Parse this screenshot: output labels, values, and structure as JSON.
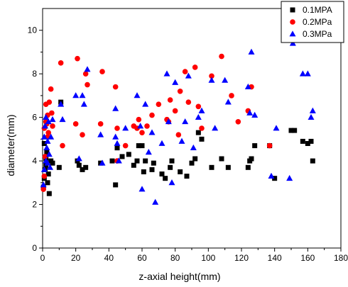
{
  "chart_data": {
    "type": "scatter",
    "title": "",
    "xlabel": "z-axial height(mm)",
    "ylabel": "diameter(mm)",
    "xlim": [
      0,
      180
    ],
    "ylim": [
      0,
      11
    ],
    "xticks": [
      0,
      20,
      40,
      60,
      80,
      100,
      120,
      140,
      160,
      180
    ],
    "yticks": [
      0,
      2,
      4,
      6,
      8,
      10
    ],
    "grid": false,
    "legend_position": "top-right",
    "series": [
      {
        "name": "0.1MPA",
        "marker": "square",
        "color": "#000000",
        "points": [
          [
            0.5,
            2.8
          ],
          [
            1,
            3.2
          ],
          [
            1.5,
            3.6
          ],
          [
            2,
            4.1
          ],
          [
            2.5,
            4.4
          ],
          [
            3,
            3.0
          ],
          [
            4,
            2.5
          ],
          [
            1,
            4.8
          ],
          [
            2,
            3.8
          ],
          [
            3.5,
            3.4
          ],
          [
            5,
            4.0
          ],
          [
            6,
            3.9
          ],
          [
            10,
            3.7
          ],
          [
            11,
            6.7
          ],
          [
            21,
            4.0
          ],
          [
            22,
            3.8
          ],
          [
            24,
            3.6
          ],
          [
            26,
            3.7
          ],
          [
            35,
            3.9
          ],
          [
            42,
            4.0
          ],
          [
            44,
            2.9
          ],
          [
            45,
            4.6
          ],
          [
            48,
            4.2
          ],
          [
            52,
            4.3
          ],
          [
            55,
            3.8
          ],
          [
            57,
            4.0
          ],
          [
            58,
            4.7
          ],
          [
            60,
            4.7
          ],
          [
            61,
            3.5
          ],
          [
            62,
            4.0
          ],
          [
            66,
            3.6
          ],
          [
            67,
            3.9
          ],
          [
            72,
            3.4
          ],
          [
            74,
            3.2
          ],
          [
            77,
            3.7
          ],
          [
            78,
            4.0
          ],
          [
            83,
            3.5
          ],
          [
            87,
            3.3
          ],
          [
            90,
            3.9
          ],
          [
            92,
            4.1
          ],
          [
            94,
            5.3
          ],
          [
            96,
            5.0
          ],
          [
            102,
            3.7
          ],
          [
            108,
            4.1
          ],
          [
            112,
            3.7
          ],
          [
            124,
            3.7
          ],
          [
            125,
            4.0
          ],
          [
            126,
            4.1
          ],
          [
            128,
            4.7
          ],
          [
            137,
            4.7
          ],
          [
            140,
            3.2
          ],
          [
            150,
            5.4
          ],
          [
            152,
            5.4
          ],
          [
            157,
            4.9
          ],
          [
            160,
            4.8
          ],
          [
            162,
            4.9
          ],
          [
            163,
            4.0
          ]
        ]
      },
      {
        "name": "0.2MPa",
        "marker": "circle",
        "color": "#ff0000",
        "points": [
          [
            0.5,
            2.7
          ],
          [
            1,
            3.3
          ],
          [
            1.5,
            4.2
          ],
          [
            2,
            6.6
          ],
          [
            2.5,
            5.7
          ],
          [
            3,
            5.1
          ],
          [
            3.5,
            5.3
          ],
          [
            4,
            6.7
          ],
          [
            5,
            7.3
          ],
          [
            5.5,
            6.2
          ],
          [
            6,
            5.6
          ],
          [
            1,
            5.5
          ],
          [
            2,
            5.8
          ],
          [
            3,
            6.1
          ],
          [
            11,
            8.5
          ],
          [
            12,
            4.7
          ],
          [
            20,
            5.7
          ],
          [
            21,
            8.7
          ],
          [
            24,
            5.2
          ],
          [
            26,
            8.0
          ],
          [
            27,
            7.5
          ],
          [
            35,
            5.7
          ],
          [
            36,
            8.1
          ],
          [
            44,
            7.4
          ],
          [
            45,
            5.5
          ],
          [
            45,
            4.0
          ],
          [
            50,
            4.7
          ],
          [
            55,
            5.6
          ],
          [
            57,
            5.5
          ],
          [
            58,
            5.9
          ],
          [
            60,
            5.3
          ],
          [
            63,
            5.6
          ],
          [
            66,
            6.1
          ],
          [
            70,
            6.6
          ],
          [
            75,
            5.9
          ],
          [
            76,
            5.8
          ],
          [
            77,
            6.8
          ],
          [
            80,
            6.3
          ],
          [
            82,
            5.2
          ],
          [
            83,
            7.2
          ],
          [
            86,
            8.1
          ],
          [
            88,
            6.7
          ],
          [
            92,
            8.3
          ],
          [
            94,
            6.5
          ],
          [
            96,
            5.5
          ],
          [
            102,
            7.9
          ],
          [
            108,
            8.8
          ],
          [
            114,
            7.0
          ],
          [
            118,
            5.8
          ],
          [
            124,
            6.3
          ],
          [
            126,
            7.4
          ],
          [
            137,
            4.7
          ]
        ]
      },
      {
        "name": "0.3MPa",
        "marker": "triangle",
        "color": "#0000ff",
        "points": [
          [
            0.5,
            2.9
          ],
          [
            1,
            5.1
          ],
          [
            1.5,
            5.6
          ],
          [
            2,
            6.0
          ],
          [
            2.5,
            4.6
          ],
          [
            3,
            4.9
          ],
          [
            3.5,
            5.8
          ],
          [
            4,
            4.3
          ],
          [
            5,
            5.1
          ],
          [
            6,
            5.9
          ],
          [
            1,
            3.6
          ],
          [
            2,
            4.0
          ],
          [
            3,
            3.9
          ],
          [
            4.5,
            3.7
          ],
          [
            11,
            6.6
          ],
          [
            12,
            5.9
          ],
          [
            20,
            7.0
          ],
          [
            22,
            4.1
          ],
          [
            24,
            7.0
          ],
          [
            25,
            6.6
          ],
          [
            27,
            8.2
          ],
          [
            35,
            5.2
          ],
          [
            36,
            3.9
          ],
          [
            44,
            6.4
          ],
          [
            44,
            5.1
          ],
          [
            45,
            4.8
          ],
          [
            46,
            4.0
          ],
          [
            50,
            5.5
          ],
          [
            57,
            7.0
          ],
          [
            59,
            5.6
          ],
          [
            60,
            2.7
          ],
          [
            62,
            6.6
          ],
          [
            64,
            4.4
          ],
          [
            66,
            5.3
          ],
          [
            68,
            2.1
          ],
          [
            72,
            4.8
          ],
          [
            75,
            8.0
          ],
          [
            76,
            5.8
          ],
          [
            78,
            3.0
          ],
          [
            80,
            7.6
          ],
          [
            84,
            4.9
          ],
          [
            86,
            5.8
          ],
          [
            88,
            7.9
          ],
          [
            91,
            4.6
          ],
          [
            94,
            6.0
          ],
          [
            96,
            6.3
          ],
          [
            102,
            7.7
          ],
          [
            104,
            5.5
          ],
          [
            110,
            7.7
          ],
          [
            112,
            6.7
          ],
          [
            124,
            7.4
          ],
          [
            125,
            6.2
          ],
          [
            126,
            9.0
          ],
          [
            128,
            6.1
          ],
          [
            138,
            3.3
          ],
          [
            141,
            5.5
          ],
          [
            149,
            3.2
          ],
          [
            151,
            9.4
          ],
          [
            157,
            8.0
          ],
          [
            160,
            8.0
          ],
          [
            162,
            6.0
          ],
          [
            163,
            6.3
          ]
        ]
      }
    ]
  }
}
